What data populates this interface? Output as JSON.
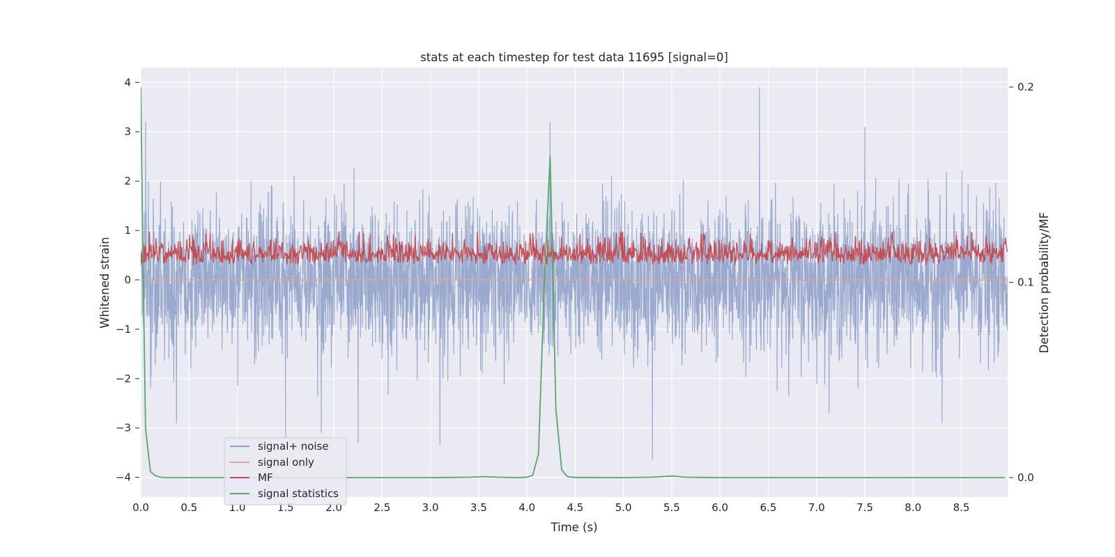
{
  "chart_data": {
    "type": "line",
    "title": "stats at each timestep for test data 11695 [signal=0]",
    "xlabel": "Time (s)",
    "ylabel": "Whitened strain",
    "y2label": "Detection probability/MF",
    "xlim": [
      0.0,
      8.98
    ],
    "ylim": [
      -4.4,
      4.3
    ],
    "y2lim": [
      -0.01,
      0.21
    ],
    "x_ticks": [
      "0.0",
      "0.5",
      "1.0",
      "1.5",
      "2.0",
      "2.5",
      "3.0",
      "3.5",
      "4.0",
      "4.5",
      "5.0",
      "5.5",
      "6.0",
      "6.5",
      "7.0",
      "7.5",
      "8.0",
      "8.5"
    ],
    "y_ticks": [
      "4",
      "3",
      "2",
      "1",
      "0",
      "−1",
      "−2",
      "−3",
      "−4"
    ],
    "y2_ticks": [
      "0.2",
      "0.1",
      "0.0"
    ],
    "grid": true,
    "legend_position": "lower-left",
    "series": [
      {
        "name": "signal+ noise",
        "axis": "left",
        "color": "#8c9fc9",
        "description": "dense whitened noise, roughly within -2.5..2.5 with spikes",
        "spikes": [
          {
            "x": 0.05,
            "y": 3.2
          },
          {
            "x": 0.1,
            "y": -2.2
          },
          {
            "x": 0.37,
            "y": -2.9
          },
          {
            "x": 1.5,
            "y": -3.2
          },
          {
            "x": 1.87,
            "y": -3.1
          },
          {
            "x": 2.25,
            "y": -3.3
          },
          {
            "x": 3.1,
            "y": -3.35
          },
          {
            "x": 4.24,
            "y": 3.2
          },
          {
            "x": 5.3,
            "y": -3.65
          },
          {
            "x": 6.41,
            "y": 3.9
          },
          {
            "x": 7.5,
            "y": 3.1
          },
          {
            "x": 8.3,
            "y": -2.9
          }
        ]
      },
      {
        "name": "signal only",
        "axis": "left",
        "color": "#e8a58a",
        "constant": 0
      },
      {
        "name": "MF",
        "axis": "right",
        "color": "#c44e52",
        "description": "matched-filter output, fluctuating roughly between 0.1 and 0.125"
      },
      {
        "name": "signal statistics",
        "axis": "right",
        "color": "#55a868",
        "x": [
          0.0,
          0.02,
          0.05,
          0.1,
          0.15,
          0.2,
          0.3,
          0.5,
          1.0,
          2.0,
          3.0,
          3.4,
          3.55,
          3.7,
          3.9,
          4.0,
          4.06,
          4.12,
          4.18,
          4.24,
          4.3,
          4.36,
          4.42,
          4.5,
          5.0,
          5.3,
          5.5,
          5.65,
          6.0,
          7.0,
          8.0,
          8.95
        ],
        "y": [
          0.2,
          0.12,
          0.025,
          0.003,
          0.001,
          0.0002,
          0.0,
          0.0,
          0.0,
          0.0,
          0.0,
          0.0002,
          0.0005,
          0.0002,
          0.0,
          0.0002,
          0.0012,
          0.012,
          0.1,
          0.165,
          0.035,
          0.004,
          0.0005,
          0.0001,
          0.0,
          0.0002,
          0.0008,
          0.0002,
          0.0,
          0.0,
          0.0,
          0.0
        ]
      }
    ]
  }
}
